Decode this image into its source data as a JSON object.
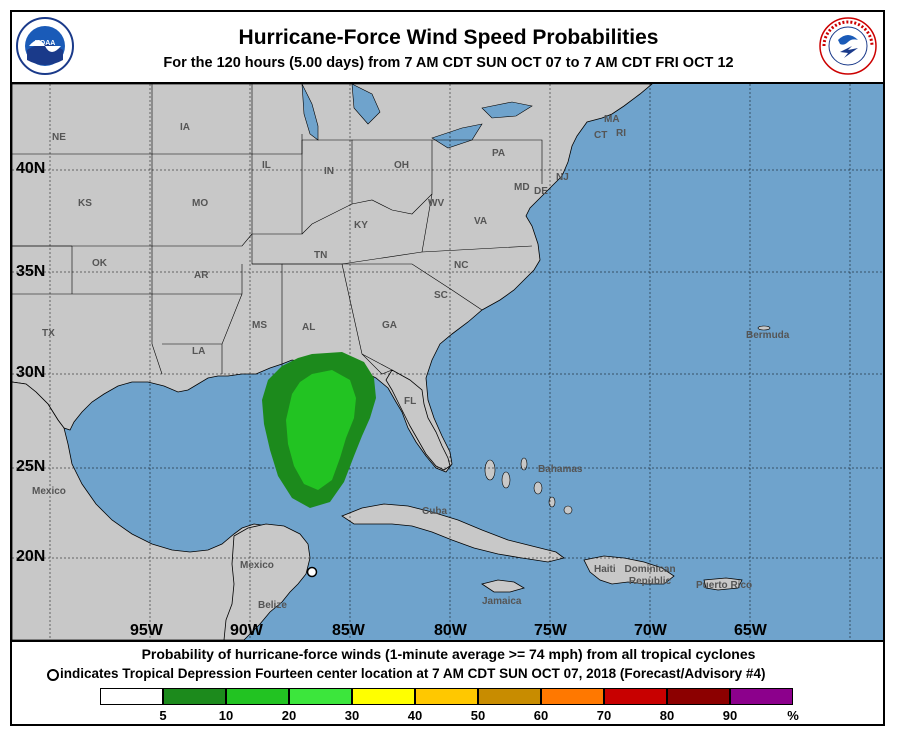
{
  "title": "Hurricane-Force Wind Speed Probabilities",
  "subtitle": "For the 120 hours (5.00 days) from 7 AM CDT SUN OCT 07 to 7 AM CDT FRI OCT 12",
  "logos": {
    "left": "NOAA",
    "right": "National Weather Service"
  },
  "map": {
    "lat_labels": [
      "40N",
      "35N",
      "30N",
      "25N",
      "20N"
    ],
    "lon_labels": [
      "95W",
      "90W",
      "85W",
      "80W",
      "75W",
      "70W",
      "65W"
    ],
    "state_labels": [
      "NE",
      "IA",
      "IL",
      "IN",
      "OH",
      "PA",
      "MA",
      "CT",
      "RI",
      "NJ",
      "MD",
      "DE",
      "KS",
      "MO",
      "KY",
      "WV",
      "VA",
      "OK",
      "AR",
      "TN",
      "NC",
      "TX",
      "MS",
      "AL",
      "GA",
      "SC",
      "LA",
      "FL"
    ],
    "place_labels": [
      "Bermuda",
      "Bahamas",
      "Mexico",
      "Cuba",
      "Mexico",
      "Haiti",
      "Dominican Republic",
      "Puerto Rico",
      "Jamaica",
      "Belize"
    ],
    "colors": {
      "ocean": "#6fa3cc",
      "land": "#c8c8c8",
      "prob_5_10": "#1c8a1c",
      "prob_10_20": "#22c322"
    },
    "storm_center_marker": "open-circle"
  },
  "footer": {
    "line1": "Probability of hurricane-force winds (1-minute average >= 74 mph) from all tropical cyclones",
    "line2": "indicates Tropical Depression Fourteen center location at 7 AM CDT SUN OCT 07, 2018 (Forecast/Advisory #4)"
  },
  "legend": {
    "colors": [
      "#ffffff",
      "#1c8a1c",
      "#22c322",
      "#3ce63c",
      "#ffff00",
      "#ffc800",
      "#c88c00",
      "#ff7800",
      "#c80000",
      "#8c0000",
      "#8c008c"
    ],
    "labels": [
      "5",
      "10",
      "20",
      "30",
      "40",
      "50",
      "60",
      "70",
      "80",
      "90",
      "%"
    ]
  }
}
